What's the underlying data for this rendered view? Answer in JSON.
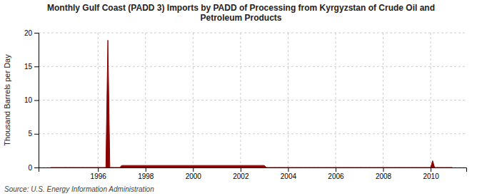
{
  "chart_data": {
    "type": "area",
    "title": "Monthly Gulf Coast (PADD 3) Imports by PADD of Processing from Kyrgyzstan of Crude Oil and\nPetroleum Products",
    "ylabel": "Thousand Barrels per Day",
    "source": "Source: U.S. Energy Information Administration",
    "color": "#8b0000",
    "grid": true,
    "xlim": [
      1993.5,
      2011.5
    ],
    "xticks": [
      1996,
      1998,
      2000,
      2002,
      2004,
      2006,
      2008,
      2010
    ],
    "ylim": [
      0,
      20
    ],
    "yticks": [
      0,
      5,
      10,
      15,
      20
    ],
    "x": [
      1994.0,
      1994.083,
      1994.167,
      1994.25,
      1994.333,
      1994.417,
      1994.5,
      1994.583,
      1994.667,
      1994.75,
      1994.833,
      1994.917,
      1995.0,
      1995.083,
      1995.167,
      1995.25,
      1995.333,
      1995.417,
      1995.5,
      1995.583,
      1995.667,
      1995.75,
      1995.833,
      1995.917,
      1996.0,
      1996.083,
      1996.167,
      1996.25,
      1996.333,
      1996.417,
      1996.5,
      1996.583,
      1996.667,
      1996.75,
      1996.833,
      1996.917,
      1997.0,
      1997.083,
      1997.167,
      1997.25,
      1997.333,
      1997.417,
      1997.5,
      1997.583,
      1997.667,
      1997.75,
      1997.833,
      1997.917,
      1998.0,
      1998.083,
      1998.167,
      1998.25,
      1998.333,
      1998.417,
      1998.5,
      1998.583,
      1998.667,
      1998.75,
      1998.833,
      1998.917,
      1999.0,
      1999.083,
      1999.167,
      1999.25,
      1999.333,
      1999.417,
      1999.5,
      1999.583,
      1999.667,
      1999.75,
      1999.833,
      1999.917,
      2000.0,
      2000.083,
      2000.167,
      2000.25,
      2000.333,
      2000.417,
      2000.5,
      2000.583,
      2000.667,
      2000.75,
      2000.833,
      2000.917,
      2001.0,
      2001.083,
      2001.167,
      2001.25,
      2001.333,
      2001.417,
      2001.5,
      2001.583,
      2001.667,
      2001.75,
      2001.833,
      2001.917,
      2002.0,
      2002.083,
      2002.167,
      2002.25,
      2002.333,
      2002.417,
      2002.5,
      2002.583,
      2002.667,
      2002.75,
      2002.833,
      2002.917,
      2003.0,
      2003.083,
      2003.167,
      2003.25,
      2003.333,
      2003.417,
      2003.5,
      2003.583,
      2003.667,
      2003.75,
      2003.833,
      2003.917,
      2004.0,
      2004.083,
      2004.167,
      2004.25,
      2004.333,
      2004.417,
      2004.5,
      2004.583,
      2004.667,
      2004.75,
      2004.833,
      2004.917,
      2005.0,
      2005.083,
      2005.167,
      2005.25,
      2005.333,
      2005.417,
      2005.5,
      2005.583,
      2005.667,
      2005.75,
      2005.833,
      2005.917,
      2006.0,
      2006.083,
      2006.167,
      2006.25,
      2006.333,
      2006.417,
      2006.5,
      2006.583,
      2006.667,
      2006.75,
      2006.833,
      2006.917,
      2007.0,
      2007.083,
      2007.167,
      2007.25,
      2007.333,
      2007.417,
      2007.5,
      2007.583,
      2007.667,
      2007.75,
      2007.833,
      2007.917,
      2008.0,
      2008.083,
      2008.167,
      2008.25,
      2008.333,
      2008.417,
      2008.5,
      2008.583,
      2008.667,
      2008.75,
      2008.833,
      2008.917,
      2009.0,
      2009.083,
      2009.167,
      2009.25,
      2009.333,
      2009.417,
      2009.5,
      2009.583,
      2009.667,
      2009.75,
      2009.833,
      2009.917,
      2010.0,
      2010.083,
      2010.167,
      2010.25,
      2010.333,
      2010.417,
      2010.5,
      2010.583,
      2010.667,
      2010.75,
      2010.833,
      2010.917
    ],
    "values": [
      0,
      0,
      0,
      0,
      0,
      0,
      0,
      0,
      0,
      0,
      0,
      0,
      0,
      0,
      0,
      0,
      0,
      0,
      0,
      0,
      0,
      0,
      0,
      0,
      0,
      0,
      0,
      0,
      0,
      18.9,
      0,
      0,
      0,
      0,
      0,
      0,
      0.3,
      0.3,
      0.3,
      0.3,
      0.3,
      0.3,
      0.3,
      0.3,
      0.3,
      0.3,
      0.3,
      0.3,
      0.3,
      0.3,
      0.3,
      0.3,
      0.3,
      0.3,
      0.3,
      0.3,
      0.3,
      0.3,
      0.3,
      0.3,
      0.3,
      0.3,
      0.3,
      0.3,
      0.3,
      0.3,
      0.3,
      0.3,
      0.3,
      0.3,
      0.3,
      0.3,
      0.3,
      0.3,
      0.3,
      0.3,
      0.3,
      0.3,
      0.3,
      0.3,
      0.3,
      0.3,
      0.3,
      0.3,
      0.3,
      0.3,
      0.3,
      0.3,
      0.3,
      0.3,
      0.3,
      0.3,
      0.3,
      0.3,
      0.3,
      0.3,
      0.3,
      0.3,
      0.3,
      0.3,
      0.3,
      0.3,
      0.3,
      0.3,
      0.3,
      0.3,
      0.3,
      0.3,
      0.3,
      0,
      0,
      0,
      0,
      0,
      0,
      0,
      0,
      0,
      0,
      0,
      0,
      0,
      0,
      0,
      0,
      0,
      0,
      0,
      0,
      0,
      0,
      0,
      0,
      0,
      0,
      0,
      0,
      0,
      0,
      0,
      0,
      0,
      0,
      0,
      0,
      0,
      0,
      0,
      0,
      0,
      0,
      0,
      0,
      0,
      0,
      0,
      0,
      0,
      0,
      0,
      0,
      0,
      0,
      0,
      0,
      0,
      0,
      0,
      0,
      0,
      0,
      0,
      0,
      0,
      0,
      0,
      0,
      0,
      0,
      0,
      0,
      0,
      0,
      0,
      0,
      0,
      0,
      0,
      0,
      0,
      0,
      0,
      0,
      1.0,
      0,
      0,
      0,
      0,
      0,
      0,
      0,
      0,
      0,
      0
    ]
  }
}
